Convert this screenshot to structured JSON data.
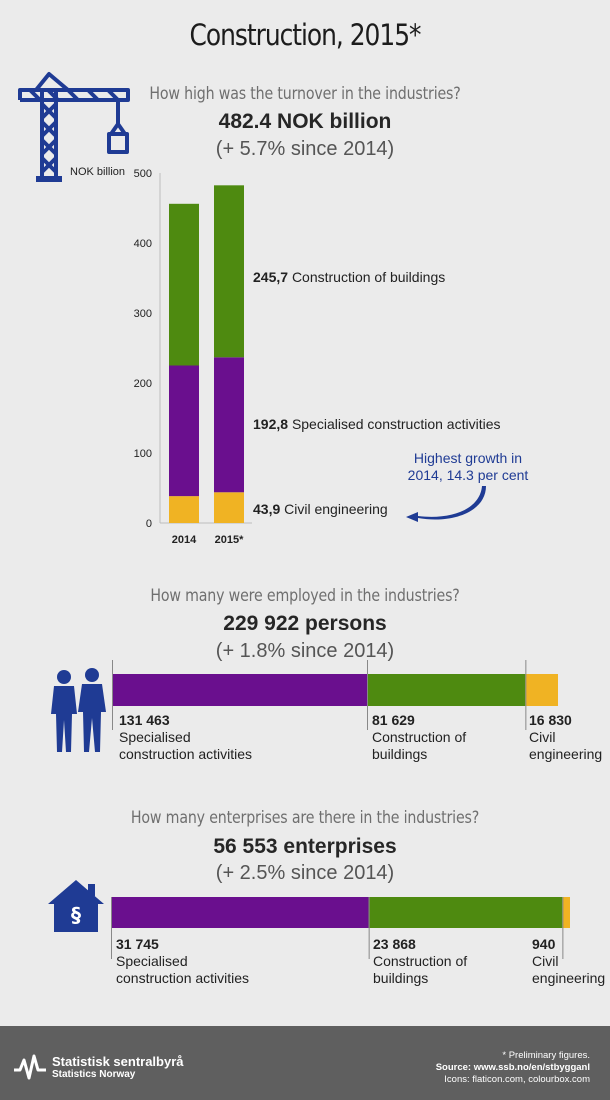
{
  "page": {
    "title": "Construction, 2015*",
    "unit": "NOK billion"
  },
  "turnover": {
    "question": "How high was the turnover in the industries?",
    "total": "482.4 NOK billion",
    "growth": "(+ 5.7% since 2014)",
    "annotation_line1": "Highest growth in",
    "annotation_line2": "2014, 14.3 per cent",
    "labels": [
      {
        "value": "245,7",
        "name": "Construction of buildings"
      },
      {
        "value": "192,8",
        "name": "Specialised construction activities"
      },
      {
        "value": "43,9",
        "name": "Civil engineering"
      }
    ]
  },
  "employment": {
    "question": "How many were employed in the industries?",
    "total": "229 922 persons",
    "growth": "(+ 1.8% since 2014)",
    "labels": [
      {
        "value": "131 463",
        "line1": "Specialised",
        "line2": "construction activities"
      },
      {
        "value": "81 629",
        "line1": "Construction of",
        "line2": "buildings"
      },
      {
        "value": "16 830",
        "line1": "Civil",
        "line2": "engineering"
      }
    ]
  },
  "enterprises": {
    "question": "How many enterprises are there in the industries?",
    "total": "56 553 enterprises",
    "growth": "(+ 2.5% since 2014)",
    "labels": [
      {
        "value": "31 745",
        "line1": "Specialised",
        "line2": "construction activities"
      },
      {
        "value": "23 868",
        "line1": "Construction of",
        "line2": "buildings"
      },
      {
        "value": "940",
        "line1": "Civil",
        "line2": "engineering"
      }
    ]
  },
  "colors": {
    "specialised": "#6a0f8e",
    "buildings": "#4e8a10",
    "civil": "#f0b323",
    "icon": "#1f3b94",
    "annotation": "#1f3b94"
  },
  "icons": {
    "crane": "crane-icon",
    "people": "people-icon",
    "house": "house-paragraph-icon",
    "logo": "ssb-logo-icon",
    "house_symbol": "§"
  },
  "footer": {
    "org_name": "Statistisk sentralbyrå",
    "org_name_en": "Statistics Norway",
    "note1": "* Preliminary figures.",
    "note2": "Source: www.ssb.no/en/stbygganl",
    "note3": "Icons: flaticon.com, colourbox.com"
  },
  "chart_data": [
    {
      "type": "bar",
      "stacked": true,
      "title": "How high was the turnover in the industries?",
      "ylabel": "NOK billion",
      "categories": [
        "2014",
        "2015*"
      ],
      "ylim": [
        0,
        500
      ],
      "yticks": [
        "0",
        "100",
        "200",
        "300",
        "400",
        "500"
      ],
      "series": [
        {
          "name": "Civil engineering",
          "values": [
            38.4,
            43.9
          ]
        },
        {
          "name": "Specialised construction activities",
          "values": [
            186.6,
            192.8
          ]
        },
        {
          "name": "Construction of buildings",
          "values": [
            231.0,
            245.7
          ]
        }
      ]
    },
    {
      "type": "bar",
      "orientation": "horizontal",
      "stacked": true,
      "title": "How many were employed in the industries?",
      "series": [
        {
          "name": "Specialised construction activities",
          "values": [
            131463
          ]
        },
        {
          "name": "Construction of buildings",
          "values": [
            81629
          ]
        },
        {
          "name": "Civil engineering",
          "values": [
            16830
          ]
        }
      ]
    },
    {
      "type": "bar",
      "orientation": "horizontal",
      "stacked": true,
      "title": "How many enterprises are there in the industries?",
      "series": [
        {
          "name": "Specialised construction activities",
          "values": [
            31745
          ]
        },
        {
          "name": "Construction of buildings",
          "values": [
            23868
          ]
        },
        {
          "name": "Civil engineering",
          "values": [
            940
          ]
        }
      ]
    }
  ]
}
